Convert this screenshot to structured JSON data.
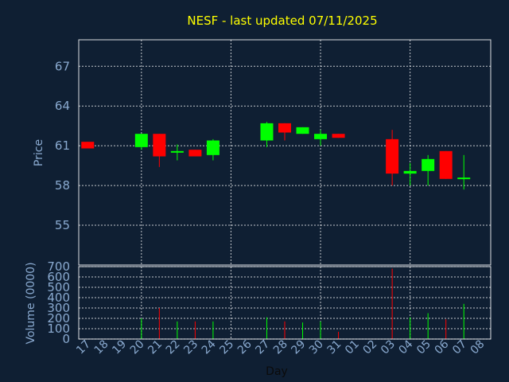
{
  "chart_data": [
    {
      "type": "candlestick",
      "title": "NESF - last updated 07/11/2025",
      "ylabel": "Price",
      "ylim": [
        52,
        69
      ],
      "yticks": [
        55,
        58,
        61,
        64,
        67
      ],
      "grid": true,
      "up_color": "#00ff00",
      "down_color": "#ff0000",
      "candles": [
        {
          "x": "17",
          "open": 61.3,
          "close": 60.8,
          "high": 61.3,
          "low": 60.8
        },
        {
          "x": "20",
          "open": 60.9,
          "close": 61.9,
          "high": 61.9,
          "low": 60.7
        },
        {
          "x": "21",
          "open": 61.9,
          "close": 60.2,
          "high": 61.9,
          "low": 59.4
        },
        {
          "x": "22",
          "open": 60.5,
          "close": 60.6,
          "high": 61.1,
          "low": 59.9
        },
        {
          "x": "23",
          "open": 60.7,
          "close": 60.2,
          "high": 60.7,
          "low": 60.2
        },
        {
          "x": "24",
          "open": 60.3,
          "close": 61.4,
          "high": 61.5,
          "low": 59.9
        },
        {
          "x": "27",
          "open": 61.4,
          "close": 62.7,
          "high": 62.8,
          "low": 60.9
        },
        {
          "x": "28",
          "open": 62.7,
          "close": 62.0,
          "high": 62.7,
          "low": 61.4
        },
        {
          "x": "29",
          "open": 61.9,
          "close": 62.4,
          "high": 62.4,
          "low": 61.9
        },
        {
          "x": "30",
          "open": 61.5,
          "close": 61.9,
          "high": 62.2,
          "low": 61.0
        },
        {
          "x": "31",
          "open": 61.9,
          "close": 61.6,
          "high": 61.9,
          "low": 61.6
        },
        {
          "x": "03",
          "open": 61.5,
          "close": 58.9,
          "high": 62.2,
          "low": 58.0
        },
        {
          "x": "04",
          "open": 58.9,
          "close": 59.1,
          "high": 59.7,
          "low": 58.0
        },
        {
          "x": "05",
          "open": 59.1,
          "close": 60.0,
          "high": 60.3,
          "low": 58.0
        },
        {
          "x": "06",
          "open": 60.6,
          "close": 58.5,
          "high": 60.6,
          "low": 58.5
        },
        {
          "x": "07",
          "open": 58.5,
          "close": 58.6,
          "high": 60.3,
          "low": 57.7
        }
      ]
    },
    {
      "type": "bar",
      "ylabel": "Volume (0000)",
      "xlabel": "Day",
      "ylim": [
        0,
        700
      ],
      "yticks": [
        0,
        100,
        200,
        300,
        400,
        500,
        600,
        700
      ],
      "categories": [
        "17",
        "18",
        "19",
        "20",
        "21",
        "22",
        "23",
        "24",
        "25",
        "26",
        "27",
        "28",
        "29",
        "30",
        "31",
        "01",
        "02",
        "03",
        "04",
        "05",
        "06",
        "07",
        "08"
      ],
      "values": [
        {
          "x": "20",
          "v": 200,
          "dir": "up"
        },
        {
          "x": "21",
          "v": 300,
          "dir": "down"
        },
        {
          "x": "22",
          "v": 170,
          "dir": "up"
        },
        {
          "x": "23",
          "v": 170,
          "dir": "down"
        },
        {
          "x": "24",
          "v": 170,
          "dir": "up"
        },
        {
          "x": "27",
          "v": 210,
          "dir": "up"
        },
        {
          "x": "28",
          "v": 170,
          "dir": "down"
        },
        {
          "x": "29",
          "v": 160,
          "dir": "up"
        },
        {
          "x": "30",
          "v": 170,
          "dir": "up"
        },
        {
          "x": "31",
          "v": 70,
          "dir": "down"
        },
        {
          "x": "03",
          "v": 680,
          "dir": "down"
        },
        {
          "x": "04",
          "v": 210,
          "dir": "up"
        },
        {
          "x": "05",
          "v": 250,
          "dir": "up"
        },
        {
          "x": "06",
          "v": 190,
          "dir": "down"
        },
        {
          "x": "07",
          "v": 340,
          "dir": "up"
        }
      ]
    }
  ]
}
